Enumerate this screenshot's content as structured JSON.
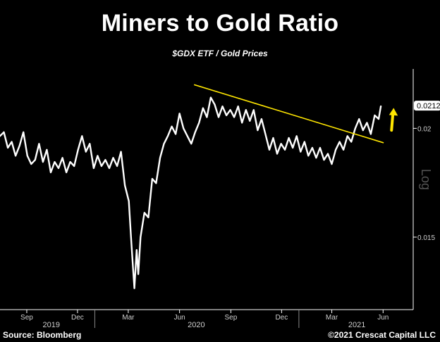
{
  "header": {
    "title": "Miners to Gold Ratio",
    "subtitle": "$GDX ETF / Gold Prices"
  },
  "footer": {
    "source": "Source: Bloomberg",
    "copyright": "©2021 Crescat Capital LLC"
  },
  "chart_data": {
    "type": "line",
    "title": "Miners to Gold Ratio",
    "subtitle": "$GDX ETF / Gold Prices",
    "y_scale": "log",
    "y_scale_label": "Log",
    "ylim": [
      0.0129,
      0.0228
    ],
    "y_ticks": [
      0.02,
      0.015
    ],
    "y_tick_labels": [
      "0.02",
      "0.015"
    ],
    "x_range": [
      "2019-07-15",
      "2021-07-25"
    ],
    "x_ticks": [
      {
        "date": "2019-09-01",
        "label": "Sep"
      },
      {
        "date": "2019-12-01",
        "label": "Dec"
      },
      {
        "date": "2020-03-01",
        "label": "Mar"
      },
      {
        "date": "2020-06-01",
        "label": "Jun"
      },
      {
        "date": "2020-09-01",
        "label": "Sep"
      },
      {
        "date": "2020-12-01",
        "label": "Dec"
      },
      {
        "date": "2021-03-01",
        "label": "Mar"
      },
      {
        "date": "2021-06-01",
        "label": "Jun"
      }
    ],
    "year_labels": [
      {
        "date": "2019-10-15",
        "label": "2019"
      },
      {
        "date": "2020-07-01",
        "label": "2020"
      },
      {
        "date": "2021-04-15",
        "label": "2021"
      }
    ],
    "last_value_label": "0.0212",
    "grid": false,
    "legend": "none",
    "series_color": "#ffffff",
    "trendline_color": "#ffe600",
    "arrow_color": "#ffe600",
    "series": [
      {
        "name": "",
        "points": [
          [
            "2019-07-15",
            0.0196
          ],
          [
            "2019-07-22",
            0.0198
          ],
          [
            "2019-07-29",
            0.019
          ],
          [
            "2019-08-05",
            0.0193
          ],
          [
            "2019-08-12",
            0.0186
          ],
          [
            "2019-08-19",
            0.0191
          ],
          [
            "2019-08-26",
            0.0198
          ],
          [
            "2019-09-02",
            0.0186
          ],
          [
            "2019-09-09",
            0.0182
          ],
          [
            "2019-09-16",
            0.0184
          ],
          [
            "2019-09-23",
            0.0192
          ],
          [
            "2019-09-30",
            0.0183
          ],
          [
            "2019-10-07",
            0.0189
          ],
          [
            "2019-10-14",
            0.0178
          ],
          [
            "2019-10-21",
            0.0183
          ],
          [
            "2019-10-28",
            0.018
          ],
          [
            "2019-11-04",
            0.0185
          ],
          [
            "2019-11-11",
            0.0178
          ],
          [
            "2019-11-18",
            0.0183
          ],
          [
            "2019-11-25",
            0.0181
          ],
          [
            "2019-12-02",
            0.0189
          ],
          [
            "2019-12-09",
            0.0196
          ],
          [
            "2019-12-16",
            0.0188
          ],
          [
            "2019-12-23",
            0.0192
          ],
          [
            "2019-12-30",
            0.018
          ],
          [
            "2020-01-06",
            0.0186
          ],
          [
            "2020-01-13",
            0.0181
          ],
          [
            "2020-01-20",
            0.0184
          ],
          [
            "2020-01-27",
            0.018
          ],
          [
            "2020-02-03",
            0.0185
          ],
          [
            "2020-02-10",
            0.0181
          ],
          [
            "2020-02-17",
            0.0188
          ],
          [
            "2020-02-24",
            0.0172
          ],
          [
            "2020-03-02",
            0.0165
          ],
          [
            "2020-03-06",
            0.015
          ],
          [
            "2020-03-09",
            0.014
          ],
          [
            "2020-03-12",
            0.0131
          ],
          [
            "2020-03-16",
            0.0145
          ],
          [
            "2020-03-19",
            0.0136
          ],
          [
            "2020-03-23",
            0.015
          ],
          [
            "2020-03-30",
            0.016
          ],
          [
            "2020-04-06",
            0.0158
          ],
          [
            "2020-04-13",
            0.0175
          ],
          [
            "2020-04-20",
            0.0173
          ],
          [
            "2020-04-27",
            0.0185
          ],
          [
            "2020-05-04",
            0.0192
          ],
          [
            "2020-05-11",
            0.0196
          ],
          [
            "2020-05-18",
            0.0201
          ],
          [
            "2020-05-25",
            0.0197
          ],
          [
            "2020-06-01",
            0.0208
          ],
          [
            "2020-06-08",
            0.02
          ],
          [
            "2020-06-15",
            0.0196
          ],
          [
            "2020-06-22",
            0.0192
          ],
          [
            "2020-06-29",
            0.0198
          ],
          [
            "2020-07-06",
            0.0203
          ],
          [
            "2020-07-13",
            0.0211
          ],
          [
            "2020-07-20",
            0.0206
          ],
          [
            "2020-07-27",
            0.0217
          ],
          [
            "2020-08-03",
            0.0213
          ],
          [
            "2020-08-10",
            0.0206
          ],
          [
            "2020-08-17",
            0.0212
          ],
          [
            "2020-08-24",
            0.0207
          ],
          [
            "2020-08-31",
            0.021
          ],
          [
            "2020-09-07",
            0.0206
          ],
          [
            "2020-09-14",
            0.0212
          ],
          [
            "2020-09-21",
            0.0203
          ],
          [
            "2020-09-28",
            0.021
          ],
          [
            "2020-10-05",
            0.0204
          ],
          [
            "2020-10-12",
            0.021
          ],
          [
            "2020-10-19",
            0.0199
          ],
          [
            "2020-10-26",
            0.0205
          ],
          [
            "2020-11-02",
            0.0197
          ],
          [
            "2020-11-09",
            0.0189
          ],
          [
            "2020-11-16",
            0.0195
          ],
          [
            "2020-11-23",
            0.0187
          ],
          [
            "2020-11-30",
            0.0192
          ],
          [
            "2020-12-07",
            0.0189
          ],
          [
            "2020-12-14",
            0.0195
          ],
          [
            "2020-12-21",
            0.019
          ],
          [
            "2020-12-28",
            0.0196
          ],
          [
            "2021-01-04",
            0.0188
          ],
          [
            "2021-01-11",
            0.0193
          ],
          [
            "2021-01-18",
            0.0186
          ],
          [
            "2021-01-25",
            0.019
          ],
          [
            "2021-02-01",
            0.0185
          ],
          [
            "2021-02-08",
            0.019
          ],
          [
            "2021-02-15",
            0.0184
          ],
          [
            "2021-02-22",
            0.0187
          ],
          [
            "2021-03-01",
            0.0182
          ],
          [
            "2021-03-08",
            0.0189
          ],
          [
            "2021-03-15",
            0.0193
          ],
          [
            "2021-03-22",
            0.0189
          ],
          [
            "2021-03-29",
            0.0196
          ],
          [
            "2021-04-05",
            0.0193
          ],
          [
            "2021-04-12",
            0.02
          ],
          [
            "2021-04-19",
            0.0205
          ],
          [
            "2021-04-26",
            0.0199
          ],
          [
            "2021-05-03",
            0.0203
          ],
          [
            "2021-05-10",
            0.0197
          ],
          [
            "2021-05-17",
            0.0207
          ],
          [
            "2021-05-24",
            0.0205
          ],
          [
            "2021-05-28",
            0.0212
          ]
        ]
      }
    ],
    "trendline": {
      "start": [
        "2020-06-27",
        0.02245
      ],
      "end": [
        "2021-06-02",
        0.01925
      ]
    },
    "arrow": {
      "date": "2021-06-18",
      "from": 0.0199,
      "to": 0.0208
    }
  }
}
